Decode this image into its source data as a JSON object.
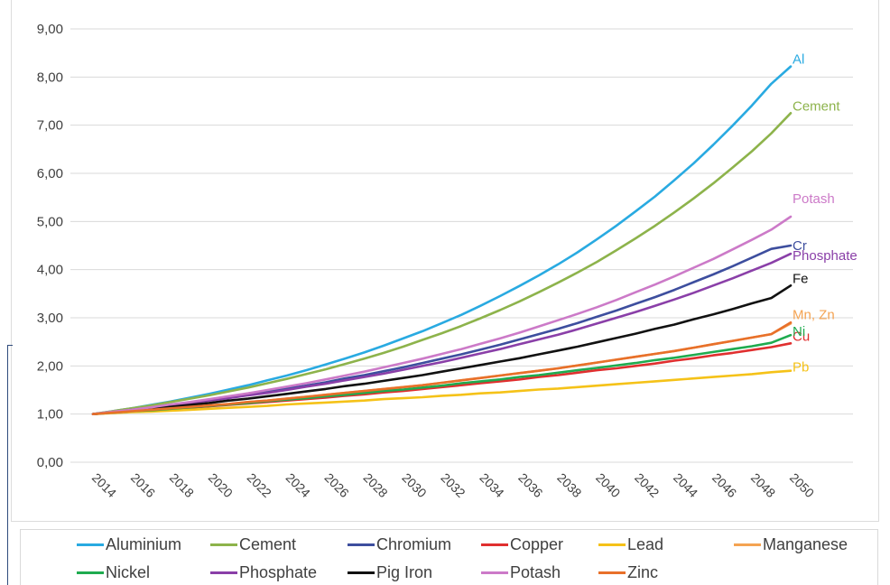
{
  "chart_data": {
    "type": "line",
    "x": [
      2014,
      2015,
      2016,
      2017,
      2018,
      2019,
      2020,
      2021,
      2022,
      2023,
      2024,
      2025,
      2026,
      2027,
      2028,
      2029,
      2030,
      2031,
      2032,
      2033,
      2034,
      2035,
      2036,
      2037,
      2038,
      2039,
      2040,
      2041,
      2042,
      2043,
      2044,
      2045,
      2046,
      2047,
      2048,
      2049,
      2050
    ],
    "x_tick_labels": [
      "2014",
      "2016",
      "2018",
      "2020",
      "2022",
      "2024",
      "2026",
      "2028",
      "2030",
      "2032",
      "2034",
      "2036",
      "2038",
      "2040",
      "2042",
      "2044",
      "2046",
      "2048",
      "2050"
    ],
    "y_tick_labels": [
      "0,00",
      "1,00",
      "2,00",
      "3,00",
      "4,00",
      "5,00",
      "6,00",
      "7,00",
      "8,00",
      "9,00"
    ],
    "ylim": [
      0,
      9
    ],
    "grid": "horizontal",
    "legend_position": "bottom",
    "title": "",
    "xlabel": "",
    "ylabel": "",
    "series": [
      {
        "name": "Aluminium",
        "label": "Al",
        "color": "#29aae1",
        "values": [
          1.0,
          1.06,
          1.12,
          1.19,
          1.26,
          1.34,
          1.42,
          1.51,
          1.6,
          1.7,
          1.8,
          1.91,
          2.03,
          2.15,
          2.28,
          2.42,
          2.57,
          2.72,
          2.89,
          3.06,
          3.25,
          3.45,
          3.66,
          3.88,
          4.11,
          4.36,
          4.63,
          4.91,
          5.21,
          5.52,
          5.86,
          6.21,
          6.59,
          6.99,
          7.41,
          7.86,
          8.22
        ]
      },
      {
        "name": "Cement",
        "label": "Cement",
        "color": "#8db34b",
        "values": [
          1.0,
          1.06,
          1.12,
          1.18,
          1.25,
          1.32,
          1.39,
          1.47,
          1.55,
          1.64,
          1.73,
          1.83,
          1.93,
          2.04,
          2.15,
          2.27,
          2.4,
          2.54,
          2.68,
          2.83,
          2.99,
          3.16,
          3.34,
          3.53,
          3.73,
          3.94,
          4.16,
          4.4,
          4.65,
          4.91,
          5.19,
          5.48,
          5.79,
          6.12,
          6.46,
          6.83,
          7.25
        ]
      },
      {
        "name": "Chromium",
        "label": "Cr",
        "color": "#3d4e9e",
        "values": [
          1.0,
          1.04,
          1.09,
          1.13,
          1.18,
          1.23,
          1.29,
          1.34,
          1.4,
          1.46,
          1.53,
          1.59,
          1.66,
          1.74,
          1.81,
          1.89,
          1.97,
          2.06,
          2.15,
          2.24,
          2.34,
          2.44,
          2.55,
          2.66,
          2.77,
          2.89,
          3.02,
          3.15,
          3.29,
          3.43,
          3.58,
          3.74,
          3.9,
          4.07,
          4.25,
          4.43,
          4.5
        ]
      },
      {
        "name": "Copper",
        "label": "Cu",
        "color": "#e02f2f",
        "values": [
          1.0,
          1.03,
          1.05,
          1.08,
          1.1,
          1.13,
          1.16,
          1.19,
          1.22,
          1.25,
          1.28,
          1.31,
          1.34,
          1.38,
          1.41,
          1.45,
          1.48,
          1.52,
          1.56,
          1.6,
          1.64,
          1.68,
          1.72,
          1.77,
          1.81,
          1.86,
          1.91,
          1.95,
          2.0,
          2.05,
          2.11,
          2.16,
          2.22,
          2.27,
          2.33,
          2.39,
          2.47
        ]
      },
      {
        "name": "Lead",
        "label": "Pb",
        "color": "#f5c218",
        "values": [
          1.0,
          1.02,
          1.04,
          1.05,
          1.07,
          1.09,
          1.11,
          1.13,
          1.15,
          1.17,
          1.2,
          1.22,
          1.24,
          1.26,
          1.28,
          1.31,
          1.33,
          1.35,
          1.38,
          1.4,
          1.43,
          1.45,
          1.48,
          1.51,
          1.53,
          1.56,
          1.59,
          1.62,
          1.65,
          1.68,
          1.71,
          1.74,
          1.77,
          1.8,
          1.83,
          1.87,
          1.9
        ]
      },
      {
        "name": "Manganese",
        "label": "Mn, Zn",
        "color": "#f4a352",
        "values": [
          1.0,
          1.03,
          1.06,
          1.09,
          1.12,
          1.15,
          1.18,
          1.21,
          1.25,
          1.28,
          1.32,
          1.36,
          1.4,
          1.44,
          1.48,
          1.52,
          1.56,
          1.6,
          1.65,
          1.7,
          1.75,
          1.8,
          1.85,
          1.9,
          1.95,
          2.01,
          2.07,
          2.13,
          2.19,
          2.25,
          2.31,
          2.38,
          2.45,
          2.52,
          2.59,
          2.66,
          2.88
        ]
      },
      {
        "name": "Nickel",
        "label": "Ni",
        "color": "#1fab4f",
        "values": [
          1.0,
          1.03,
          1.06,
          1.08,
          1.11,
          1.14,
          1.17,
          1.2,
          1.23,
          1.27,
          1.3,
          1.33,
          1.37,
          1.4,
          1.44,
          1.48,
          1.51,
          1.55,
          1.59,
          1.64,
          1.68,
          1.72,
          1.77,
          1.81,
          1.86,
          1.91,
          1.96,
          2.01,
          2.06,
          2.12,
          2.17,
          2.23,
          2.29,
          2.35,
          2.41,
          2.48,
          2.64
        ]
      },
      {
        "name": "Phosphate",
        "label": "Phosphate",
        "color": "#8a3fa8",
        "values": [
          1.0,
          1.04,
          1.09,
          1.13,
          1.18,
          1.23,
          1.28,
          1.33,
          1.39,
          1.44,
          1.5,
          1.57,
          1.63,
          1.7,
          1.77,
          1.84,
          1.92,
          2.0,
          2.08,
          2.17,
          2.26,
          2.35,
          2.45,
          2.55,
          2.65,
          2.76,
          2.88,
          3.0,
          3.12,
          3.25,
          3.38,
          3.52,
          3.67,
          3.82,
          3.98,
          4.14,
          4.33
        ]
      },
      {
        "name": "Pig Iron",
        "label": "Fe",
        "color": "#111111",
        "values": [
          1.0,
          1.04,
          1.07,
          1.11,
          1.15,
          1.19,
          1.23,
          1.28,
          1.32,
          1.37,
          1.42,
          1.47,
          1.52,
          1.58,
          1.63,
          1.69,
          1.75,
          1.81,
          1.88,
          1.95,
          2.02,
          2.09,
          2.16,
          2.24,
          2.32,
          2.4,
          2.49,
          2.58,
          2.67,
          2.77,
          2.86,
          2.97,
          3.07,
          3.18,
          3.3,
          3.41,
          3.67
        ]
      },
      {
        "name": "Potash",
        "label": "Potash",
        "color": "#cc7ac8",
        "values": [
          1.0,
          1.05,
          1.09,
          1.14,
          1.2,
          1.25,
          1.31,
          1.37,
          1.43,
          1.5,
          1.57,
          1.64,
          1.72,
          1.8,
          1.88,
          1.97,
          2.06,
          2.15,
          2.25,
          2.35,
          2.46,
          2.57,
          2.69,
          2.82,
          2.95,
          3.08,
          3.22,
          3.37,
          3.53,
          3.69,
          3.86,
          4.04,
          4.22,
          4.42,
          4.62,
          4.83,
          5.1
        ]
      },
      {
        "name": "Zinc",
        "label": "",
        "color": "#e8702a",
        "values": [
          1.0,
          1.03,
          1.06,
          1.09,
          1.12,
          1.15,
          1.18,
          1.21,
          1.25,
          1.28,
          1.32,
          1.36,
          1.4,
          1.44,
          1.48,
          1.52,
          1.56,
          1.6,
          1.65,
          1.7,
          1.75,
          1.8,
          1.85,
          1.9,
          1.95,
          2.01,
          2.07,
          2.13,
          2.19,
          2.25,
          2.31,
          2.38,
          2.45,
          2.52,
          2.59,
          2.66,
          2.9
        ]
      }
    ]
  }
}
